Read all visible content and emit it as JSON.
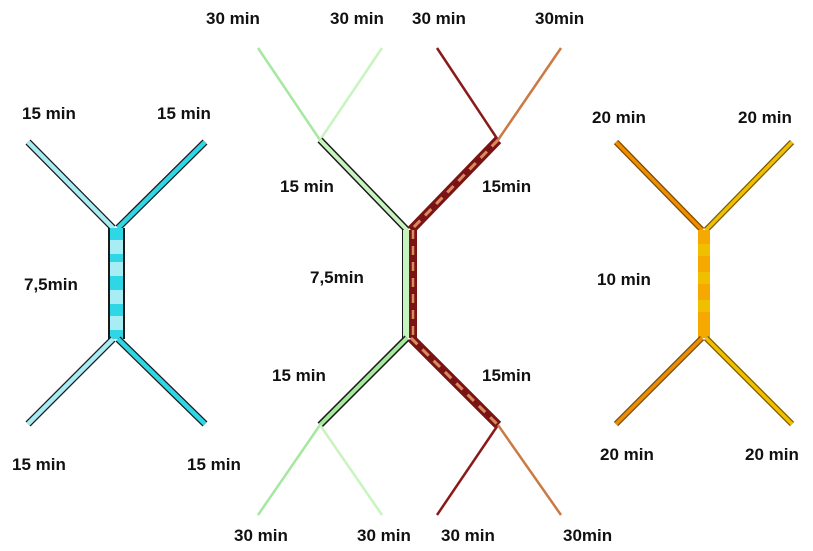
{
  "colors": {
    "cyan_light": "#a8ecf4",
    "cyan": "#2fd6e6",
    "cyan_edge": "#1a1a1a",
    "green_light": "#c8f4c0",
    "green": "#7dde7a",
    "green_mid": "#a6e8a0",
    "maroon": "#7a1414",
    "maroon_stripe": "#d98a60",
    "orange_light_brown": "#cc7a44",
    "orange": "#f08c00",
    "yellow": "#f0c000",
    "amber": "#f5a800"
  },
  "left": {
    "top_left": "15 min",
    "top_right": "15 min",
    "middle": "7,5min",
    "bottom_left": "15 min",
    "bottom_right": "15 min"
  },
  "center": {
    "top_far_left": "30 min",
    "top_mid_left": "30 min",
    "top_mid_right": "30 min",
    "top_far_right": "30min",
    "upper_left": "15 min",
    "upper_right": "15min",
    "middle": "7,5min",
    "lower_left": "15 min",
    "lower_right": "15min",
    "bottom_far_left": "30 min",
    "bottom_mid_left": "30 min",
    "bottom_mid_right": "30 min",
    "bottom_far_right": "30min"
  },
  "right": {
    "top_left": "20 min",
    "top_right": "20 min",
    "middle": "10 min",
    "bottom_left": "20 min",
    "bottom_right": "20 min"
  }
}
